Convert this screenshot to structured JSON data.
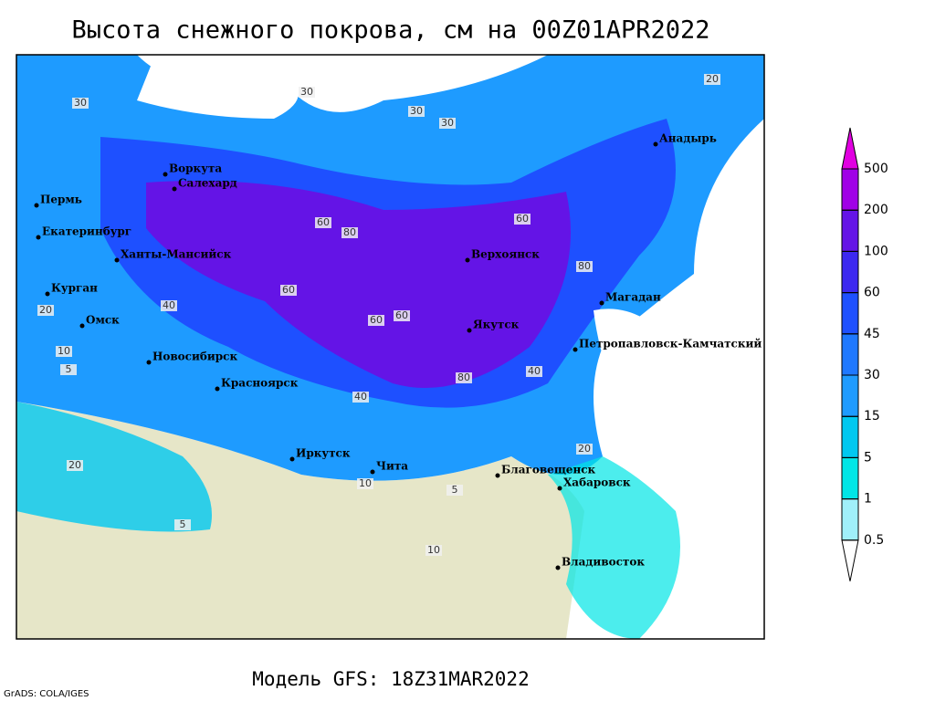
{
  "header": {
    "title": "Высота снежного покрова, см на 00Z01APR2022"
  },
  "footer": {
    "model": "Модель GFS: 18Z31MAR2022",
    "credit": "GrADS: COLA/IGES"
  },
  "colorbar": {
    "levels": [
      0.5,
      1,
      5,
      15,
      30,
      45,
      60,
      100,
      200,
      500
    ],
    "colors": [
      "#ffffff",
      "#a0f0fa",
      "#00e6e6",
      "#00c8f0",
      "#1e9bff",
      "#1e78ff",
      "#1e50ff",
      "#3c28f0",
      "#6414e6",
      "#a000e6",
      "#e100e1"
    ]
  },
  "cities": [
    "Воркута",
    "Салехард",
    "Пермь",
    "Екатеринбург",
    "Ханты-Мансийск",
    "Курган",
    "Омск",
    "Новосибирск",
    "Красноярск",
    "Иркутск",
    "Чита",
    "Благовещенск",
    "Хабаровск",
    "Владивосток",
    "Якутск",
    "Верхоянск",
    "Магадан",
    "Петропавловск-Камчатский",
    "Анадырь"
  ],
  "contour_labels": [
    30,
    30,
    30,
    30,
    20,
    60,
    80,
    60,
    80,
    60,
    40,
    60,
    80,
    60,
    40,
    20,
    10,
    5,
    20,
    10,
    40,
    20,
    5,
    5,
    10
  ]
}
